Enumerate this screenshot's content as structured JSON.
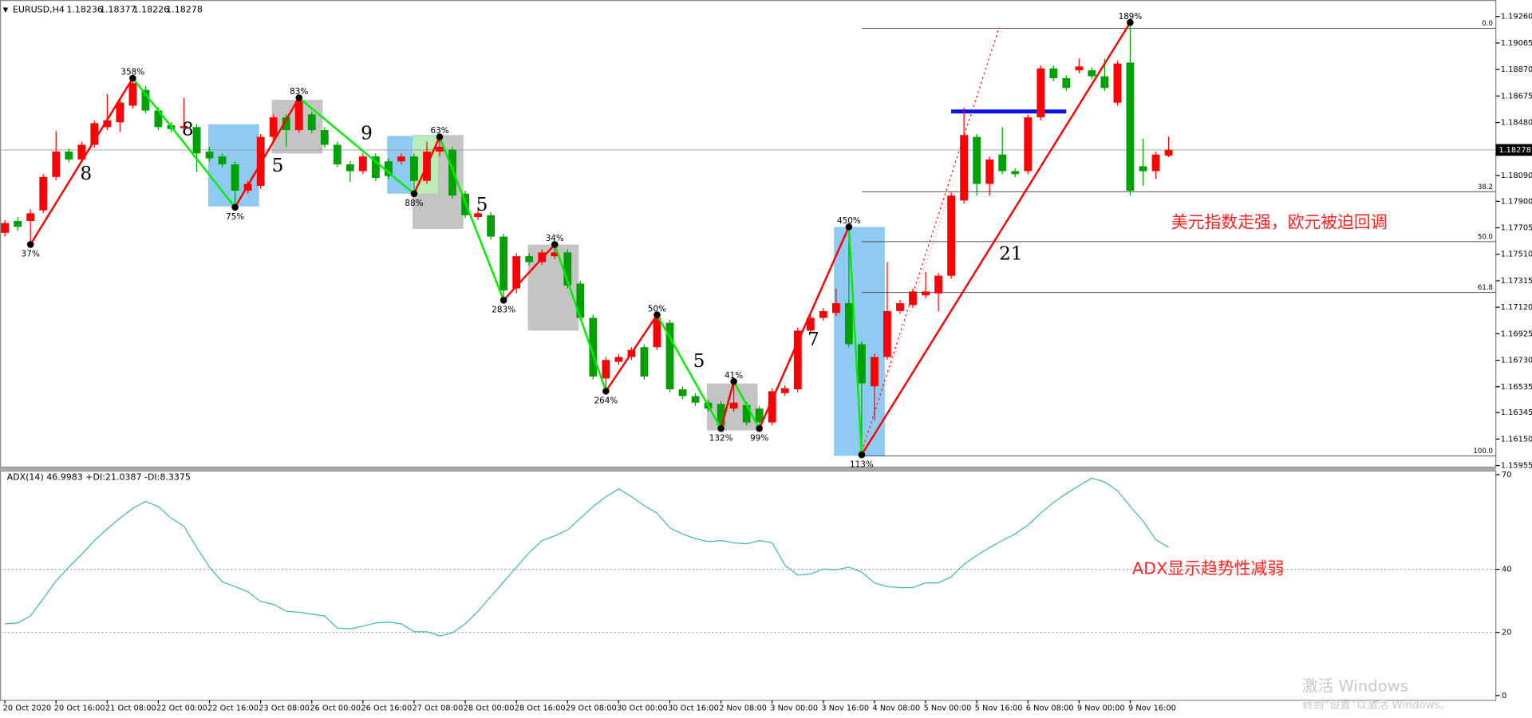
{
  "chart_data": [
    {
      "type": "candlestick",
      "title": "EURUSD,H4",
      "categories": [
        "20 Oct 2020",
        null,
        null,
        null,
        "20 Oct 16:00",
        null,
        null,
        null,
        "21 Oct 08:00",
        null,
        null,
        null,
        "22 Oct 00:00",
        null,
        null,
        null,
        "22 Oct 16:00",
        null,
        null,
        null,
        "23 Oct 08:00",
        null,
        null,
        null,
        "26 Oct 00:00",
        null,
        null,
        null,
        "26 Oct 16:00",
        null,
        null,
        null,
        "27 Oct 08:00",
        null,
        null,
        null,
        "28 Oct 00:00",
        null,
        null,
        null,
        "28 Oct 16:00",
        null,
        null,
        null,
        "29 Oct 08:00",
        null,
        null,
        null,
        "30 Oct 00:00",
        null,
        null,
        null,
        "30 Oct 16:00",
        null,
        null,
        null,
        "2 Nov 08:00",
        null,
        null,
        null,
        "3 Nov 00:00",
        null,
        null,
        null,
        "3 Nov 16:00",
        null,
        null,
        null,
        "4 Nov 08:00",
        null,
        null,
        null,
        "5 Nov 00:00",
        null,
        null,
        null,
        "5 Nov 16:00",
        null,
        null,
        null,
        "6 Nov 08:00",
        null,
        null,
        null,
        "9 Nov 00:00",
        null,
        null,
        null,
        "9 Nov 16:00",
        null,
        null,
        null
      ],
      "open": [
        1.17668,
        1.17755,
        1.17755,
        1.17834,
        1.18079,
        1.18266,
        1.18208,
        1.18316,
        1.18446,
        1.18482,
        1.18604,
        1.1872,
        1.18568,
        1.1846,
        1.18439,
        1.18446,
        1.18266,
        1.1823,
        1.18172,
        1.17978,
        1.18014,
        1.18374,
        1.18518,
        1.18424,
        1.1854,
        1.18424,
        1.18316,
        1.18172,
        1.18122,
        1.1823,
        1.18194,
        1.18194,
        1.1823,
        1.1805,
        1.18266,
        1.1828,
        1.17956,
        1.17784,
        1.17798,
        1.1764,
        1.17258,
        1.17496,
        1.17452,
        1.17496,
        1.17524,
        1.17294,
        1.17042,
        1.16596,
        1.16718,
        1.16754,
        1.16826,
        1.16826,
        1.17006,
        1.16516,
        1.16466,
        1.16418,
        1.16408,
        1.16374,
        1.16401,
        1.16374,
        1.16272,
        1.16488,
        1.16516,
        1.16948,
        1.17042,
        1.17078,
        1.1715,
        1.16848,
        1.16538,
        1.16754,
        1.17092,
        1.17136,
        1.17208,
        1.17222,
        1.17352,
        1.17906,
        1.18374,
        1.18028,
        1.18244,
        1.18122,
        1.18122,
        1.18518,
        1.18878,
        1.18806,
        1.18864,
        1.18864,
        1.1882,
        1.18626,
        1.18921,
        1.18158,
        1.18122,
        1.18236
      ],
      "high": [
        1.17762,
        1.17784,
        1.17841,
        1.181,
        1.18417,
        1.18288,
        1.18338,
        1.18496,
        1.18691,
        1.18648,
        1.18806,
        1.18748,
        1.1859,
        1.18482,
        1.18662,
        1.18468,
        1.18302,
        1.18252,
        1.18194,
        1.1805,
        1.18396,
        1.1854,
        1.1854,
        1.18662,
        1.18561,
        1.18446,
        1.18338,
        1.18194,
        1.18252,
        1.18252,
        1.18216,
        1.18252,
        1.18252,
        1.18338,
        1.18374,
        1.18302,
        1.17978,
        1.17834,
        1.1782,
        1.17661,
        1.17517,
        1.17517,
        1.17546,
        1.17582,
        1.17546,
        1.17316,
        1.17064,
        1.16754,
        1.16776,
        1.16826,
        1.16848,
        1.17064,
        1.17028,
        1.16538,
        1.16488,
        1.16437,
        1.1643,
        1.16574,
        1.16423,
        1.16394,
        1.16524,
        1.16545,
        1.1697,
        1.17064,
        1.17114,
        1.17258,
        1.17712,
        1.16869,
        1.16776,
        1.17452,
        1.17172,
        1.17258,
        1.1738,
        1.17373,
        1.17964,
        1.1859,
        1.18396,
        1.1823,
        1.18446,
        1.18144,
        1.1854,
        1.189,
        1.189,
        1.18828,
        1.1895,
        1.18885,
        1.1895,
        1.18936,
        1.19216,
        1.1836,
        1.18266,
        1.18377
      ],
      "low": [
        1.1764,
        1.17683,
        1.17582,
        1.17812,
        1.18057,
        1.18187,
        1.18187,
        1.18295,
        1.18424,
        1.1841,
        1.18583,
        1.18547,
        1.18424,
        1.1841,
        1.18417,
        1.18115,
        1.18194,
        1.18151,
        1.17856,
        1.17956,
        1.17992,
        1.18352,
        1.18302,
        1.18403,
        1.18403,
        1.18295,
        1.18151,
        1.18043,
        1.181,
        1.1805,
        1.18064,
        1.18172,
        1.17956,
        1.18028,
        1.1823,
        1.1792,
        1.17776,
        1.17762,
        1.17618,
        1.17172,
        1.17222,
        1.17431,
        1.17431,
        1.17474,
        1.17258,
        1.1702,
        1.16588,
        1.16502,
        1.16696,
        1.16732,
        1.16588,
        1.16806,
        1.16494,
        1.16444,
        1.16394,
        1.1635,
        1.16228,
        1.1635,
        1.1625,
        1.16228,
        1.1625,
        1.16466,
        1.16494,
        1.16927,
        1.1702,
        1.17056,
        1.16826,
        1.16034,
        1.16286,
        1.16732,
        1.17071,
        1.17114,
        1.17186,
        1.17092,
        1.1733,
        1.17884,
        1.17942,
        1.17942,
        1.181,
        1.18079,
        1.181,
        1.18496,
        1.18784,
        1.18712,
        1.18842,
        1.18799,
        1.18712,
        1.18604,
        1.17942,
        1.18014,
        1.18064,
        1.18226
      ],
      "close": [
        1.1774,
        1.17712,
        1.17812,
        1.18079,
        1.18266,
        1.18208,
        1.18316,
        1.18475,
        1.18496,
        1.18626,
        1.1877,
        1.18568,
        1.18446,
        1.18432,
        1.18453,
        1.18252,
        1.18216,
        1.18172,
        1.17978,
        1.18028,
        1.18374,
        1.18518,
        1.18424,
        1.1864,
        1.18424,
        1.18316,
        1.18172,
        1.18122,
        1.1823,
        1.18072,
        1.18086,
        1.1823,
        1.1805,
        1.18266,
        1.18302,
        1.17942,
        1.17798,
        1.17812,
        1.1764,
        1.17244,
        1.17496,
        1.17452,
        1.17524,
        1.17524,
        1.1728,
        1.17042,
        1.1661,
        1.16732,
        1.16754,
        1.16806,
        1.1661,
        1.17042,
        1.16516,
        1.16466,
        1.16418,
        1.16374,
        1.1625,
        1.16418,
        1.16272,
        1.16272,
        1.16502,
        1.16524,
        1.16948,
        1.17042,
        1.17092,
        1.1715,
        1.16848,
        1.1656,
        1.16754,
        1.17092,
        1.1715,
        1.17236,
        1.17236,
        1.17352,
        1.17942,
        1.18388,
        1.18028,
        1.18208,
        1.18122,
        1.181,
        1.18518,
        1.18878,
        1.18806,
        1.18734,
        1.18892,
        1.1882,
        1.18734,
        1.18914,
        1.17978,
        1.18122,
        1.18244,
        1.18278
      ],
      "up_color": "#ff0000",
      "down_color": "#00a000",
      "ylim": [
        1.1594,
        1.1936
      ],
      "yticks": [
        {
          "value": 1.1926,
          "label": "1.19260"
        },
        1.19065,
        {
          "value": 1.1887,
          "label": "1.18870"
        },
        1.18675,
        {
          "value": 1.1848,
          "label": "1.18480"
        },
        {
          "value": 1.1809,
          "label": "1.18090"
        },
        {
          "value": 1.179,
          "label": "1.17900"
        },
        1.17705,
        {
          "value": 1.1751,
          "label": "1.17510"
        },
        1.17315,
        {
          "value": 1.1712,
          "label": "1.17120"
        },
        1.16925,
        {
          "value": 1.1673,
          "label": "1.16730"
        },
        1.16535,
        1.16345,
        {
          "value": 1.1615,
          "label": "1.16150"
        },
        1.15955
      ],
      "zigzag": {
        "index": [
          2,
          10,
          18,
          23,
          32,
          34,
          39,
          43,
          47,
          51,
          56,
          57,
          59,
          66,
          67,
          88
        ],
        "labels": [
          "37%",
          "358%",
          "75%",
          "83%",
          "88%",
          "63%",
          "283%",
          "34%",
          "264%",
          "50%",
          "132%",
          "41%",
          "99%",
          "450%",
          "113%",
          "189%"
        ],
        "up_color": "#ff0000",
        "down_color": "#00ee00"
      },
      "wave_counts": [
        8,
        8,
        5,
        9,
        5,
        5,
        7,
        21
      ],
      "fib_levels": [
        {
          "label": "0.0",
          "price": 1.19173
        },
        {
          "label": "38.2",
          "price": 1.1797
        },
        {
          "label": "50.0",
          "price": 1.17603
        },
        {
          "label": "61.8",
          "price": 1.17229
        },
        {
          "label": "100.0",
          "price": 1.16026
        }
      ],
      "blue_level": 1.18561,
      "annotation": "美元指数走强，欧元被迫回调"
    },
    {
      "type": "line",
      "title": "ADX(14) 46.9983 +DI:21.0387 -DI:8.3375",
      "values": [
        22.7,
        23.0,
        25.2,
        30.7,
        36.3,
        40.7,
        44.7,
        49.1,
        52.8,
        56.2,
        59.3,
        61.5,
        59.9,
        56.2,
        53.7,
        46.9,
        40.7,
        36.0,
        34.5,
        32.9,
        29.8,
        28.9,
        26.7,
        26.4,
        25.8,
        25.2,
        21.4,
        21.1,
        22.0,
        23.0,
        23.3,
        22.7,
        20.2,
        20.2,
        18.9,
        19.9,
        22.7,
        26.7,
        31.4,
        36.0,
        40.7,
        45.3,
        49.1,
        50.6,
        52.5,
        56.2,
        59.9,
        63.0,
        65.5,
        63.0,
        60.2,
        57.8,
        53.1,
        51.2,
        49.7,
        48.8,
        49.1,
        48.4,
        48.1,
        49.1,
        48.4,
        41.3,
        38.2,
        38.5,
        40.1,
        39.8,
        40.7,
        39.1,
        35.7,
        34.5,
        34.2,
        34.2,
        35.7,
        35.7,
        37.6,
        41.6,
        44.4,
        46.9,
        49.1,
        51.2,
        54.0,
        57.8,
        61.2,
        64.0,
        66.5,
        68.9,
        67.7,
        64.9,
        59.9,
        55.3,
        49.4,
        47.0
      ],
      "color": "#3cb8b8",
      "ylim": [
        0,
        71
      ],
      "yticks": [
        0,
        20,
        40,
        70
      ],
      "levels": [
        20,
        40
      ],
      "annotation": "ADX显示趋势性减弱"
    }
  ],
  "watermark": {
    "line1": "激活 Windows",
    "line2": "转到“设置”以激活 Windows。"
  }
}
